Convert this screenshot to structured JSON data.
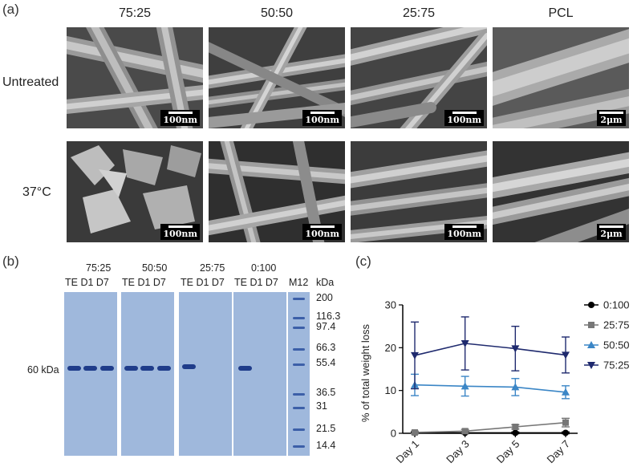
{
  "panel_a": {
    "letter": "(a)",
    "columns": [
      "75:25",
      "50:50",
      "25:75",
      "PCL"
    ],
    "rows": [
      "Untreated",
      "37°C"
    ],
    "scale_bars": [
      [
        "100nm",
        "100nm",
        "100nm",
        "2μm"
      ],
      [
        "100nm",
        "100nm",
        "100nm",
        "2μm"
      ]
    ]
  },
  "panel_b": {
    "letter": "(b)",
    "groups": [
      "75:25",
      "50:50",
      "25:75",
      "0:100"
    ],
    "lane_labels": "TE D1 D7",
    "marker_lane_label": "M12",
    "unit_label": "kDa",
    "band_label": "60 kDa",
    "marker_sizes": [
      "200",
      "116.3",
      "97.4",
      "66.3",
      "55.4",
      "36.5",
      "31",
      "21.5",
      "14.4"
    ]
  },
  "panel_c": {
    "letter": "(c)"
  },
  "chart_data": {
    "type": "line",
    "ylabel": "% of total weight loss",
    "xlabel": "",
    "categories": [
      "Day 1",
      "Day 3",
      "Day 5",
      "Day 7"
    ],
    "ylim": [
      0,
      30
    ],
    "yticks": [
      "0",
      "10",
      "20",
      "30"
    ],
    "legend_position": "right",
    "series": [
      {
        "name": "0:100",
        "color": "#000000",
        "marker": "circle",
        "values": [
          0.1,
          0.1,
          0.1,
          0.1
        ],
        "errors": [
          0.2,
          0.2,
          0.2,
          0.2
        ]
      },
      {
        "name": "25:75",
        "color": "#777777",
        "marker": "square",
        "values": [
          0.2,
          0.5,
          1.5,
          2.5
        ],
        "errors": [
          0.3,
          0.4,
          0.5,
          1.0
        ]
      },
      {
        "name": "50:50",
        "color": "#3b86c6",
        "marker": "triangle-up",
        "values": [
          11.3,
          11.0,
          10.8,
          9.6
        ],
        "errors": [
          2.5,
          2.3,
          2.0,
          1.5
        ]
      },
      {
        "name": "75:25",
        "color": "#1f2a6e",
        "marker": "triangle-down",
        "values": [
          18.2,
          21.0,
          19.8,
          18.3
        ],
        "errors": [
          7.8,
          6.2,
          5.2,
          4.2
        ]
      }
    ]
  }
}
